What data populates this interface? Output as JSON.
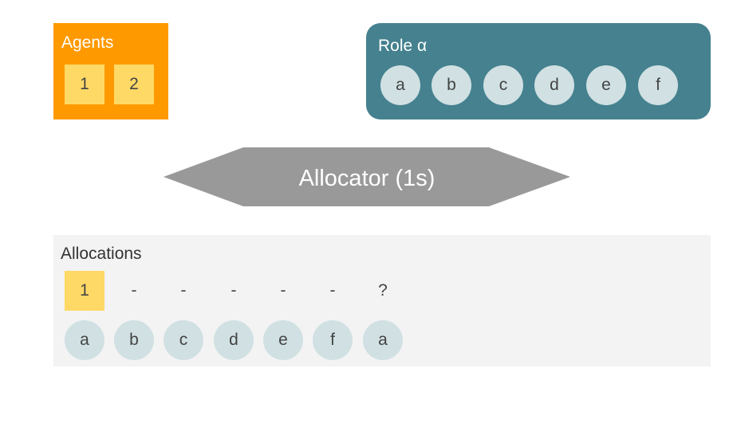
{
  "agents": {
    "title": "Agents",
    "items": [
      "1",
      "2"
    ],
    "color": "#ff9900",
    "chip_color": "#ffd966"
  },
  "role": {
    "title": "Role α",
    "items": [
      "a",
      "b",
      "c",
      "d",
      "e",
      "f"
    ],
    "color": "#45818e",
    "item_color": "#d0e0e3"
  },
  "allocator": {
    "label": "Allocator (1s)",
    "color": "#999999"
  },
  "allocations": {
    "title": "Allocations",
    "agent_slots": [
      "1",
      "-",
      "-",
      "-",
      "-",
      "-",
      "?"
    ],
    "filled_slots": [
      0
    ],
    "roles": [
      "a",
      "b",
      "c",
      "d",
      "e",
      "f",
      "a"
    ],
    "background": "#f3f3f3"
  }
}
